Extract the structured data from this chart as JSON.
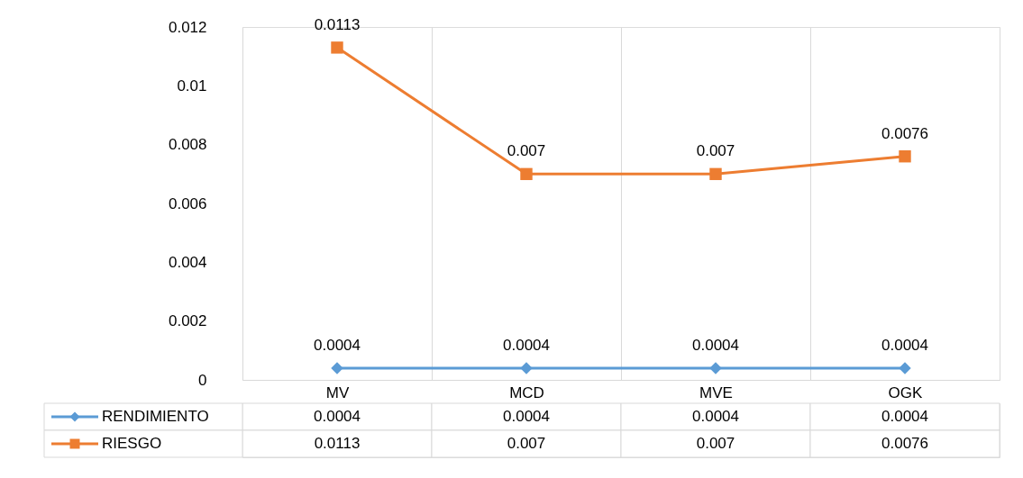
{
  "chart_data": {
    "type": "line",
    "categories": [
      "MV",
      "MCD",
      "MVE",
      "OGK"
    ],
    "series": [
      {
        "name": "RENDIMIENTO",
        "color": "#5b9bd5",
        "marker": "diamond",
        "values": [
          0.0004,
          0.0004,
          0.0004,
          0.0004
        ]
      },
      {
        "name": "RIESGO",
        "color": "#ed7d31",
        "marker": "square",
        "values": [
          0.0113,
          0.007,
          0.007,
          0.0076
        ]
      }
    ],
    "ylim": [
      0,
      0.012
    ],
    "yticks": [
      0,
      0.002,
      0.004,
      0.006,
      0.008,
      0.01,
      0.012
    ],
    "grid": "x",
    "legend": "bottom",
    "data_labels": true,
    "annotations": [
      "0.0004",
      "0.0004",
      "0.0004",
      "0.0004",
      "0.0113",
      "0.007",
      "0.007",
      "0.0076"
    ]
  }
}
